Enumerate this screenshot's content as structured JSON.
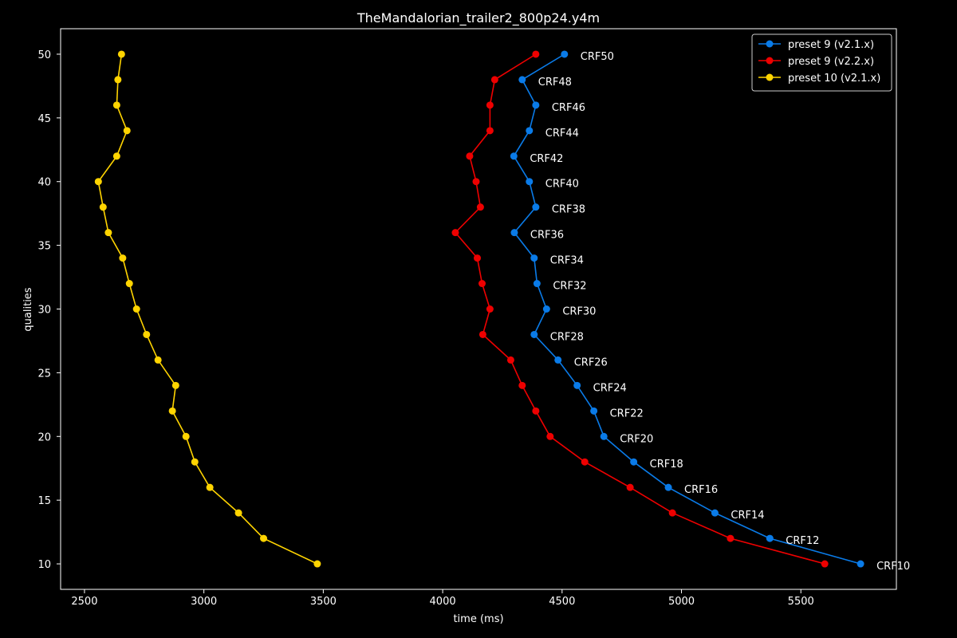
{
  "chart_data": {
    "type": "line",
    "title": "TheMandalorian_trailer2_800p24.y4m",
    "xlabel": "time (ms)",
    "ylabel": "qualities",
    "xlim": [
      2400,
      5900
    ],
    "ylim": [
      8,
      52
    ],
    "xticks": [
      2500,
      3000,
      3500,
      4000,
      4500,
      5000,
      5500
    ],
    "yticks": [
      10,
      15,
      20,
      25,
      30,
      35,
      40,
      45,
      50
    ],
    "legend_position": "top-right",
    "series": [
      {
        "name": "preset 9 (v2.1.x)",
        "color": "#0a7be8",
        "x": [
          5750,
          5370,
          5140,
          4945,
          4800,
          4675,
          4633,
          4563,
          4483,
          4383,
          4435,
          4395,
          4383,
          4300,
          4390,
          4363,
          4298,
          4363,
          4390,
          4333,
          4510
        ],
        "y": [
          10,
          12,
          14,
          16,
          18,
          20,
          22,
          24,
          26,
          28,
          30,
          32,
          34,
          36,
          38,
          40,
          42,
          44,
          46,
          48,
          50
        ],
        "labels": [
          "CRF10",
          "CRF12",
          "CRF14",
          "CRF16",
          "CRF18",
          "CRF20",
          "CRF22",
          "CRF24",
          "CRF26",
          "CRF28",
          "CRF30",
          "CRF32",
          "CRF34",
          "CRF36",
          "CRF38",
          "CRF40",
          "CRF42",
          "CRF44",
          "CRF46",
          "CRF48",
          "CRF50"
        ]
      },
      {
        "name": "preset 9 (v2.2.x)",
        "color": "#ee0000",
        "x": [
          5600,
          5205,
          4962,
          4785,
          4595,
          4450,
          4390,
          4333,
          4285,
          4168,
          4198,
          4165,
          4145,
          4053,
          4158,
          4140,
          4113,
          4198,
          4198,
          4218,
          4390
        ],
        "y": [
          10,
          12,
          14,
          16,
          18,
          20,
          22,
          24,
          26,
          28,
          30,
          32,
          34,
          36,
          38,
          40,
          42,
          44,
          46,
          48,
          50
        ]
      },
      {
        "name": "preset 10 (v2.1.x)",
        "color": "#ffd400",
        "x": [
          3475,
          3250,
          3145,
          3025,
          2962,
          2925,
          2868,
          2882,
          2808,
          2760,
          2718,
          2688,
          2660,
          2600,
          2578,
          2558,
          2635,
          2678,
          2635,
          2640,
          2655
        ],
        "y": [
          10,
          12,
          14,
          16,
          18,
          20,
          22,
          24,
          26,
          28,
          30,
          32,
          34,
          36,
          38,
          40,
          42,
          44,
          46,
          48,
          50
        ]
      }
    ]
  }
}
